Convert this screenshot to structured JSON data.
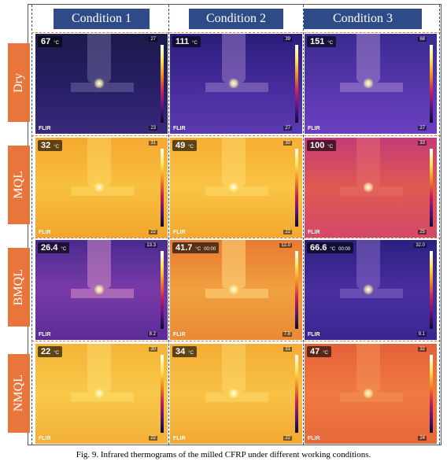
{
  "figure": {
    "columns": [
      "Condition 1",
      "Condition 2",
      "Condition 3"
    ],
    "unit": "°C",
    "logo": "FLIR",
    "rows": [
      {
        "label": "Dry",
        "cells": [
          {
            "reading": "67",
            "max": "27",
            "min": "23"
          },
          {
            "reading": "111",
            "max": "39",
            "min": "27"
          },
          {
            "reading": "151",
            "max": "68",
            "min": "27"
          }
        ]
      },
      {
        "label": "MQL",
        "cells": [
          {
            "reading": "32",
            "max": "31",
            "min": "22"
          },
          {
            "reading": "49",
            "max": "30",
            "min": "22"
          },
          {
            "reading": "100",
            "max": "33",
            "min": "25"
          }
        ]
      },
      {
        "label": "BMQL",
        "cells": [
          {
            "reading": "26.4",
            "max": "13.3",
            "min": "8.2"
          },
          {
            "reading": "41.7",
            "max": "12.0",
            "min": "7.8",
            "timer": "00:00"
          },
          {
            "reading": "66.6",
            "max": "32.0",
            "min": "9.1",
            "timer": "00:00"
          }
        ]
      },
      {
        "label": "NMQL",
        "cells": [
          {
            "reading": "22",
            "max": "30",
            "min": "22"
          },
          {
            "reading": "34",
            "max": "31",
            "min": "22"
          },
          {
            "reading": "47",
            "max": "32",
            "min": "24"
          }
        ]
      }
    ],
    "caption": "Fig. 9. Infrared thermograms of the milled CFRP under different working conditions."
  }
}
